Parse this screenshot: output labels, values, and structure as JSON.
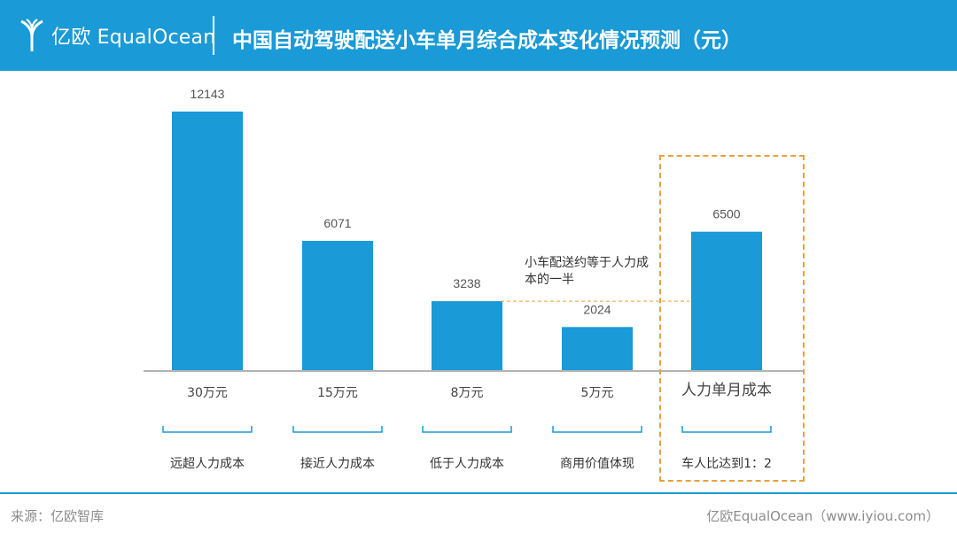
{
  "header": {
    "brand": "亿欧 EqualOcean",
    "title": "中国自动驾驶配送小车单月综合成本变化情况预测（元）"
  },
  "chart_data": {
    "type": "bar",
    "title": "中国自动驾驶配送小车单月综合成本变化情况预测（元）",
    "categories": [
      "30万元",
      "15万元",
      "8万元",
      "5万元",
      "人力单月成本"
    ],
    "values": [
      12143,
      6071,
      3238,
      2024,
      6500
    ],
    "groups": [
      "远超人力成本",
      "接近人力成本",
      "低于人力成本",
      "商用价值体现",
      "车人比达到1：2"
    ],
    "annotation": "小车配送约等于人力成本的一半",
    "ylim": [
      0,
      12143
    ],
    "grid": false,
    "colors": {
      "bar": "#1a9ad6",
      "highlight": "#e6a23c",
      "reference_line": "#e6a23c"
    }
  },
  "footer": {
    "source": "来源：亿欧智库",
    "brand": "亿欧EqualOcean（www.iyiou.com）"
  }
}
